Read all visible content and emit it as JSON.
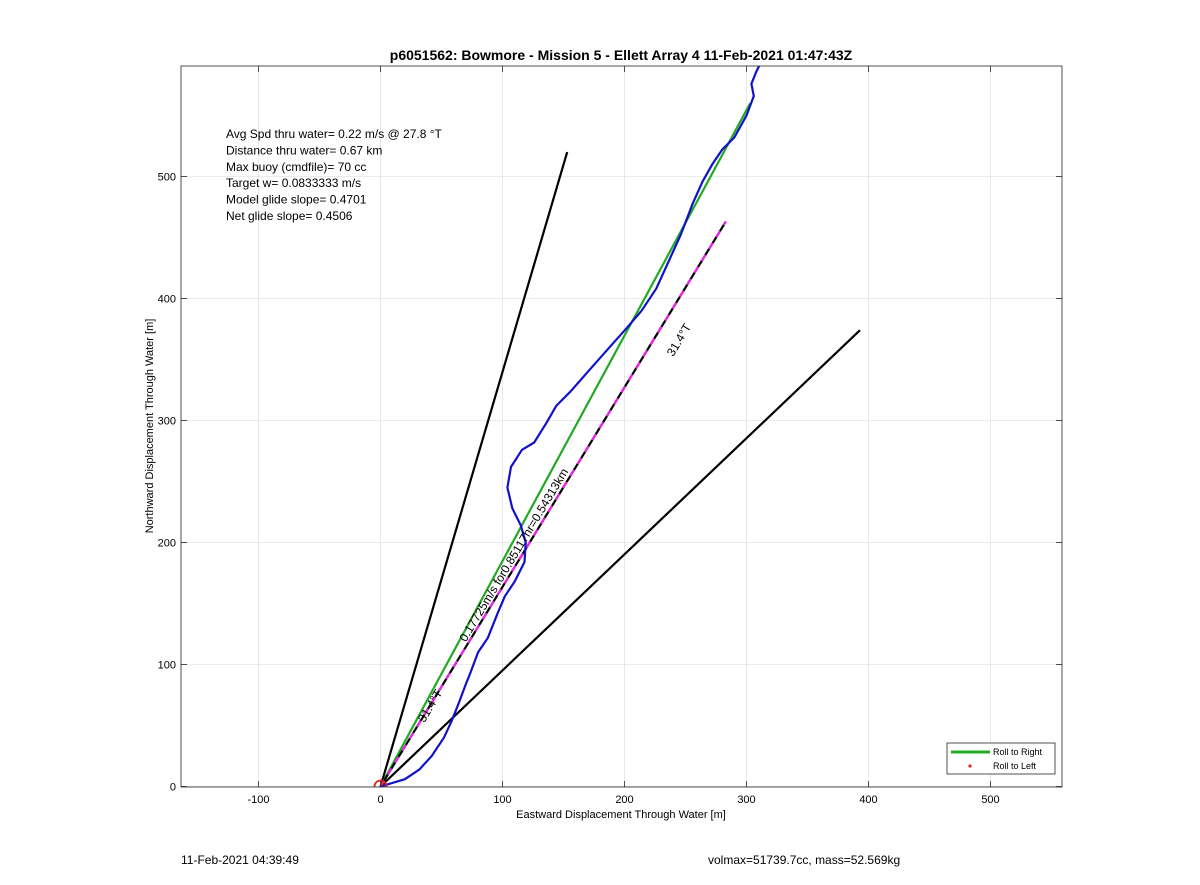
{
  "chart_data": {
    "type": "line",
    "title": "p6051562: Bowmore - Mission 5 - Ellett Array 4 11-Feb-2021 01:47:43Z",
    "xlabel": "Eastward Displacement Through Water [m]",
    "ylabel": "Northward Displacement Through Water [m]",
    "xlim": [
      -160,
      560
    ],
    "ylim": [
      0,
      590
    ],
    "xticks": [
      -100,
      0,
      100,
      200,
      300,
      400,
      500
    ],
    "yticks": [
      0,
      100,
      200,
      300,
      400,
      500
    ],
    "grid": true,
    "legend_position": "bottom-right",
    "legend": [
      {
        "label": "Roll to Right",
        "color": "#22aa22",
        "style": "line"
      },
      {
        "label": "Roll to Left",
        "color": "#ee2222",
        "style": "marker"
      }
    ],
    "info_lines": [
      "Avg Spd thru water=  0.22 m/s @  27.8 °T",
      "Distance thru water=  0.67 km",
      "Max buoy (cmdfile)= 70 cc",
      "Target w= 0.0833333 m/s",
      "Model glide slope= 0.4701",
      "Net glide slope= 0.4506"
    ],
    "series": [
      {
        "name": "Roll to Right",
        "color": "#22aa22",
        "x": [
          0,
          303
        ],
        "y": [
          0,
          560
        ]
      },
      {
        "name": "Roll to Left",
        "color": "#ee2222",
        "marker": true,
        "x": [
          1
        ],
        "y": [
          2
        ]
      },
      {
        "color": "#1111cc",
        "x": [
          0,
          20,
          32,
          42,
          52,
          58,
          64,
          70,
          74,
          80,
          88,
          96,
          102,
          110,
          118,
          119,
          115,
          108,
          104,
          107,
          116,
          126,
          136,
          144,
          156,
          170,
          186,
          202,
          214,
          226,
          236,
          246,
          256,
          264,
          272,
          280,
          290,
          300,
          306,
          304,
          308,
          311
        ],
        "y": [
          0,
          6,
          14,
          25,
          40,
          53,
          68,
          84,
          94,
          110,
          122,
          142,
          156,
          168,
          184,
          200,
          214,
          228,
          245,
          262,
          276,
          282,
          298,
          312,
          324,
          340,
          358,
          376,
          390,
          408,
          430,
          452,
          478,
          496,
          510,
          522,
          532,
          550,
          566,
          576,
          586,
          592
        ]
      },
      {
        "color": "#000000",
        "x": [
          0,
          153
        ],
        "y": [
          0,
          520
        ]
      },
      {
        "color": "#000000",
        "x": [
          0,
          393
        ],
        "y": [
          0,
          374
        ]
      },
      {
        "color": "#000000",
        "dashed_overlay": "#ee22ee",
        "x": [
          0,
          283
        ],
        "y": [
          0,
          463
        ]
      }
    ],
    "annotations": [
      {
        "text": "31.4°T",
        "x": 240,
        "y": 352,
        "rotation_deg": -59
      },
      {
        "text": "31.4°T",
        "x": 36,
        "y": 52,
        "rotation_deg": -59
      },
      {
        "text": "0.17725m/s for0.85117hr=0.54313km",
        "x": 70,
        "y": 118,
        "rotation_deg": -59
      }
    ],
    "start_marker": {
      "x": 0,
      "y": 0,
      "color": "#dd2222"
    }
  },
  "footer": {
    "left": "11-Feb-2021 04:39:49",
    "right": "volmax=51739.7cc, mass=52.569kg"
  }
}
